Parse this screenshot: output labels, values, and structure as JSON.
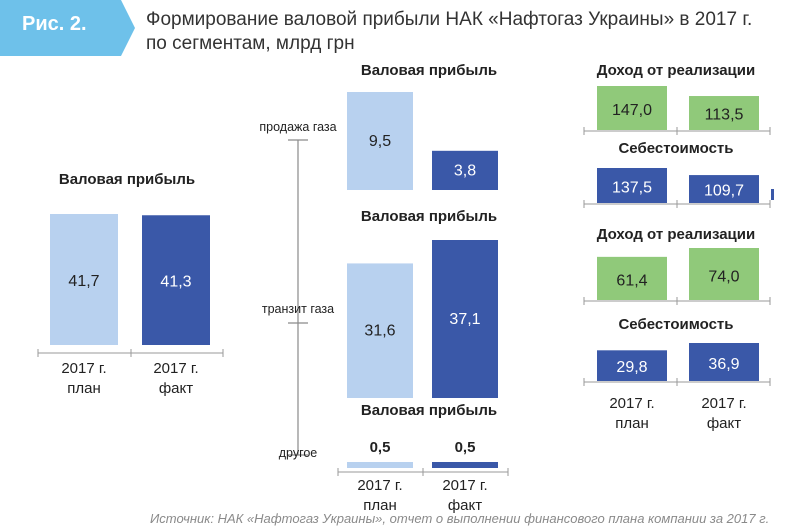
{
  "figure": {
    "badge": "Рис. 2.",
    "title_line1": "Формирование валовой прибыли НАК «Нафтогаз Украины» в 2017 г.",
    "title_line2": "по сегментам, млрд грн",
    "source": "Источник: НАК «Нафтогаз Украины», отчет о выполнении финансового плана компании за 2017 г."
  },
  "colors": {
    "plan": "#b8d1ef",
    "fact": "#3a58a8",
    "revenue": "#90c97a",
    "cost": "#3a58a8",
    "badge": "#6ec1ea"
  },
  "chart_data": [
    {
      "type": "bar",
      "id": "total",
      "title": "Валовая прибыль",
      "categories": [
        "2017 г. план",
        "2017 г. факт"
      ],
      "category_lines": [
        [
          "2017 г.",
          "план"
        ],
        [
          "2017 г.",
          "факт"
        ]
      ],
      "values": [
        41.7,
        41.3
      ],
      "value_labels": [
        "41,7",
        "41,3"
      ]
    },
    {
      "type": "bar",
      "id": "gas-sales",
      "segment": "продажа газа",
      "title": "Валовая прибыль",
      "categories": [
        "2017 г. план",
        "2017 г. факт"
      ],
      "values": [
        9.5,
        3.8
      ],
      "value_labels": [
        "9,5",
        "3,8"
      ],
      "revenue": {
        "title": "Доход от реализации",
        "values": [
          147.0,
          113.5
        ],
        "value_labels": [
          "147,0",
          "113,5"
        ]
      },
      "cost": {
        "title": "Себестоимость",
        "values": [
          137.5,
          109.7
        ],
        "value_labels": [
          "137,5",
          "109,7"
        ]
      }
    },
    {
      "type": "bar",
      "id": "transit",
      "segment": "транзит газа",
      "title": "Валовая прибыль",
      "categories": [
        "2017 г. план",
        "2017 г. факт"
      ],
      "values": [
        31.6,
        37.1
      ],
      "value_labels": [
        "31,6",
        "37,1"
      ],
      "revenue": {
        "title": "Доход от реализации",
        "values": [
          61.4,
          74.0
        ],
        "value_labels": [
          "61,4",
          "74,0"
        ]
      },
      "cost": {
        "title": "Себестоимость",
        "values": [
          29.8,
          36.9
        ],
        "value_labels": [
          "29,8",
          "36,9"
        ]
      }
    },
    {
      "type": "bar",
      "id": "other",
      "segment": "другое",
      "title": "Валовая прибыль",
      "categories": [
        "2017 г. план",
        "2017 г. факт"
      ],
      "category_lines": [
        [
          "2017 г.",
          "план"
        ],
        [
          "2017 г.",
          "факт"
        ]
      ],
      "values": [
        0.5,
        0.5
      ],
      "value_labels": [
        "0,5",
        "0,5"
      ]
    }
  ]
}
